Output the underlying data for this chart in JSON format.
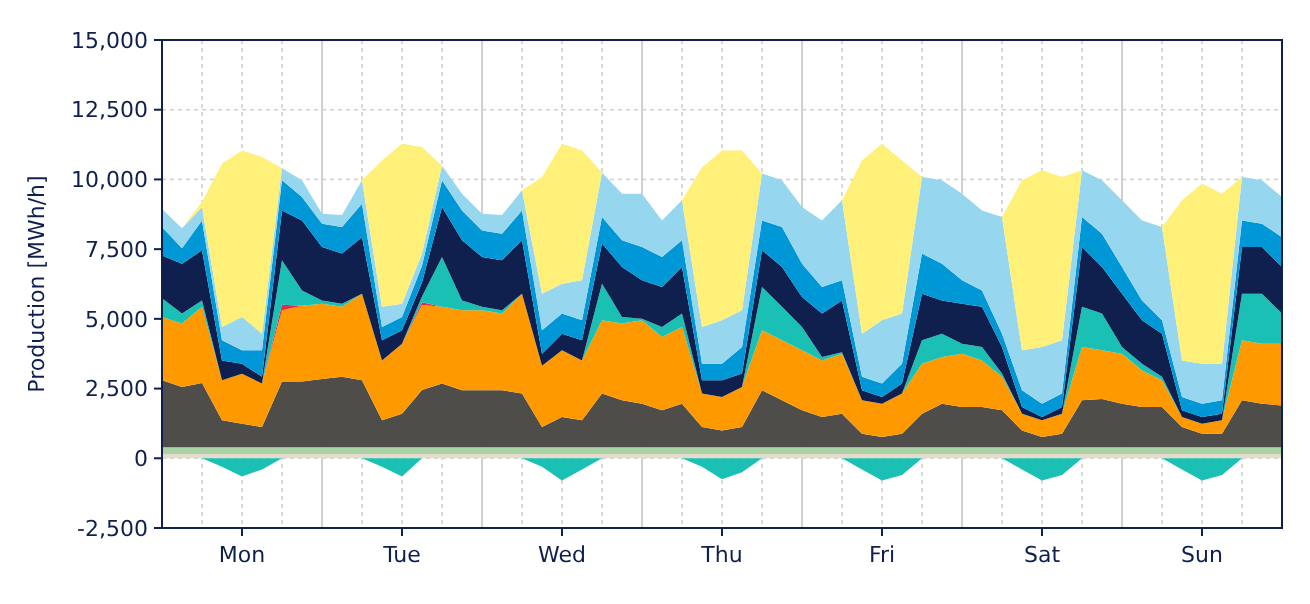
{
  "chart_data": [
    {
      "type": "area",
      "stacked": true,
      "ylabel": "Production [MWh/h]",
      "categories": [
        null,
        null,
        null,
        null,
        "Mon",
        null,
        null,
        null,
        null,
        null,
        null,
        null,
        "Tue",
        null,
        null,
        null,
        null,
        null,
        null,
        null,
        "Wed",
        null,
        null,
        null,
        null,
        null,
        null,
        null,
        "Thu",
        null,
        null,
        null,
        null,
        null,
        null,
        null,
        "Fri",
        null,
        null,
        null,
        null,
        null,
        null,
        null,
        "Sat",
        null,
        null,
        null,
        null,
        null,
        null,
        null,
        "Sun",
        null,
        null,
        null,
        null
      ],
      "ylim": [
        -2500,
        15000
      ],
      "yticks": [
        {
          "value": -2500,
          "label": "-2,500"
        },
        0,
        {
          "value": 2500,
          "label": "2,500"
        },
        {
          "value": 5000,
          "label": "5,000"
        },
        {
          "value": 7500,
          "label": "7,500"
        },
        {
          "value": 10000,
          "label": "10,000"
        },
        {
          "value": 12500,
          "label": "12,500"
        },
        {
          "value": 15000,
          "label": "15,000"
        }
      ],
      "grid": true,
      "series": [
        {
          "color": "#e6dccb",
          "values": [
            150,
            150,
            150,
            150,
            150,
            150,
            150,
            150,
            150,
            150,
            150,
            150,
            150,
            150,
            150,
            150,
            150,
            150,
            150,
            150,
            150,
            150,
            150,
            150,
            150,
            150,
            150,
            150,
            150,
            150,
            150,
            150,
            150,
            150,
            150,
            150,
            150,
            150,
            150,
            150,
            150,
            150,
            150,
            150,
            150,
            150,
            150,
            150,
            150,
            150,
            150,
            150,
            150,
            150,
            150,
            150,
            150
          ]
        },
        {
          "color": "#a9d3a6",
          "values": [
            250,
            250,
            250,
            250,
            250,
            250,
            250,
            250,
            250,
            250,
            250,
            250,
            250,
            250,
            250,
            250,
            250,
            250,
            250,
            250,
            250,
            250,
            250,
            250,
            250,
            250,
            250,
            250,
            250,
            250,
            250,
            250,
            250,
            250,
            250,
            250,
            250,
            250,
            250,
            250,
            250,
            250,
            250,
            250,
            250,
            250,
            250,
            250,
            250,
            250,
            250,
            250,
            250,
            250,
            250,
            250,
            250
          ]
        },
        {
          "color": "#4e4d49",
          "values": [
            2400,
            2160,
            2300,
            960,
            840,
            720,
            2350,
            2350,
            2440,
            2520,
            2400,
            960,
            1200,
            2050,
            2280,
            2040,
            2040,
            2040,
            1920,
            720,
            1080,
            960,
            1920,
            1680,
            1560,
            1320,
            1560,
            720,
            600,
            720,
            2040,
            1680,
            1320,
            1080,
            1200,
            480,
            360,
            480,
            1200,
            1560,
            1440,
            1440,
            1320,
            600,
            360,
            480,
            1680,
            1730,
            1560,
            1440,
            1440,
            720,
            480,
            480,
            1680,
            1560,
            1490
          ]
        },
        {
          "color": "#ff9900",
          "values": [
            2270,
            2270,
            2730,
            1440,
            1790,
            1560,
            2560,
            2720,
            2700,
            2510,
            3100,
            2150,
            2510,
            3050,
            2750,
            2870,
            2870,
            2750,
            3580,
            2200,
            2390,
            2150,
            2630,
            2750,
            2990,
            2630,
            2750,
            1200,
            1200,
            1440,
            2150,
            2150,
            2150,
            2030,
            2150,
            1200,
            1200,
            1440,
            1790,
            1670,
            1910,
            1670,
            1200,
            600,
            600,
            720,
            1910,
            1740,
            1790,
            1310,
            960,
            360,
            360,
            480,
            2150,
            2150,
            2220
          ]
        },
        {
          "color": "#e8294a",
          "values": [
            0,
            0,
            0,
            0,
            0,
            0,
            200,
            0,
            0,
            0,
            0,
            0,
            0,
            100,
            0,
            0,
            0,
            0,
            0,
            0,
            0,
            0,
            0,
            0,
            0,
            0,
            0,
            0,
            0,
            0,
            0,
            0,
            0,
            0,
            0,
            0,
            0,
            0,
            0,
            0,
            0,
            0,
            0,
            0,
            0,
            0,
            0,
            0,
            0,
            0,
            0,
            0,
            0,
            0,
            0,
            0,
            0
          ]
        },
        {
          "color": "#1bc0b4",
          "values": [
            670,
            360,
            230,
            0,
            0,
            0,
            1590,
            550,
            120,
            110,
            0,
            0,
            0,
            200,
            1790,
            350,
            120,
            120,
            0,
            0,
            0,
            0,
            1310,
            240,
            50,
            360,
            480,
            0,
            0,
            0,
            1550,
            1200,
            840,
            120,
            50,
            0,
            0,
            0,
            840,
            840,
            360,
            480,
            120,
            0,
            0,
            0,
            1440,
            1320,
            240,
            240,
            120,
            0,
            0,
            0,
            1670,
            1790,
            1080
          ]
        },
        {
          "color": "#10204e",
          "values": [
            1530,
            1790,
            1800,
            710,
            360,
            240,
            1790,
            2510,
            1920,
            1800,
            2030,
            720,
            480,
            500,
            1790,
            2160,
            1790,
            1790,
            1920,
            430,
            600,
            720,
            1440,
            1790,
            1380,
            1430,
            1670,
            480,
            600,
            480,
            1320,
            1430,
            1070,
            1560,
            1860,
            360,
            240,
            360,
            1670,
            1190,
            1430,
            1440,
            950,
            240,
            120,
            240,
            2150,
            1670,
            1910,
            1560,
            1550,
            240,
            240,
            240,
            1680,
            1680,
            1670
          ]
        },
        {
          "color": "#0097d6",
          "values": [
            1020,
            550,
            1070,
            720,
            480,
            950,
            1080,
            840,
            830,
            950,
            1200,
            480,
            480,
            600,
            960,
            1070,
            950,
            950,
            1070,
            840,
            720,
            720,
            950,
            960,
            1200,
            1080,
            960,
            590,
            590,
            950,
            1070,
            1430,
            1200,
            950,
            720,
            480,
            480,
            710,
            1440,
            1320,
            840,
            590,
            480,
            600,
            480,
            480,
            1070,
            1190,
            960,
            710,
            480,
            480,
            480,
            480,
            950,
            830,
            1070
          ]
        },
        {
          "color": "#96d7ef",
          "values": [
            650,
            720,
            480,
            480,
            1200,
            600,
            430,
            600,
            360,
            430,
            840,
            720,
            470,
            440,
            520,
            600,
            600,
            670,
            720,
            1310,
            1070,
            1430,
            1600,
            1670,
            1910,
            1310,
            1430,
            1320,
            1560,
            1320,
            1680,
            1680,
            2030,
            2390,
            2870,
            1550,
            2270,
            1800,
            2750,
            2990,
            3110,
            2870,
            4180,
            1430,
            2030,
            1910,
            1680,
            1920,
            2390,
            2870,
            3340,
            1310,
            1430,
            1310,
            1560,
            1560,
            1440
          ]
        },
        {
          "color": "#fff07a",
          "values": [
            0,
            0,
            190,
            5850,
            5970,
            6330,
            0,
            0,
            0,
            0,
            0,
            5250,
            5740,
            3820,
            0,
            0,
            0,
            0,
            0,
            4190,
            5020,
            4660,
            0,
            0,
            0,
            0,
            0,
            5730,
            6090,
            5730,
            0,
            0,
            0,
            0,
            0,
            6210,
            6330,
            5490,
            0,
            0,
            0,
            0,
            0,
            6100,
            6340,
            5860,
            0,
            0,
            0,
            0,
            0,
            5740,
            6460,
            6100,
            0,
            0,
            0
          ]
        }
      ]
    },
    {
      "type": "area",
      "categories": [
        null,
        null,
        null,
        null,
        null,
        null,
        null,
        null,
        null,
        null,
        null,
        null,
        null,
        null,
        null,
        null,
        null,
        null,
        null,
        null,
        null,
        null,
        null,
        null,
        null,
        null,
        null,
        null,
        null,
        null,
        null,
        null,
        null,
        null,
        null,
        null,
        null,
        null,
        null,
        null,
        null,
        null,
        null,
        null,
        null,
        null,
        null,
        null,
        null,
        null,
        null,
        null,
        null,
        null,
        null,
        null,
        null
      ],
      "ylim": [
        -2500,
        15000
      ],
      "series": [
        {
          "color": "#1bc0b4",
          "values": [
            0,
            0,
            0,
            -300,
            -650,
            -400,
            0,
            0,
            0,
            0,
            0,
            -300,
            -650,
            0,
            0,
            0,
            0,
            0,
            0,
            -300,
            -800,
            -400,
            0,
            0,
            0,
            0,
            0,
            -300,
            -750,
            -500,
            0,
            0,
            0,
            0,
            0,
            -400,
            -800,
            -600,
            0,
            0,
            0,
            0,
            0,
            -400,
            -800,
            -600,
            0,
            0,
            0,
            0,
            0,
            -400,
            -800,
            -600,
            0,
            0,
            0
          ]
        }
      ]
    }
  ]
}
